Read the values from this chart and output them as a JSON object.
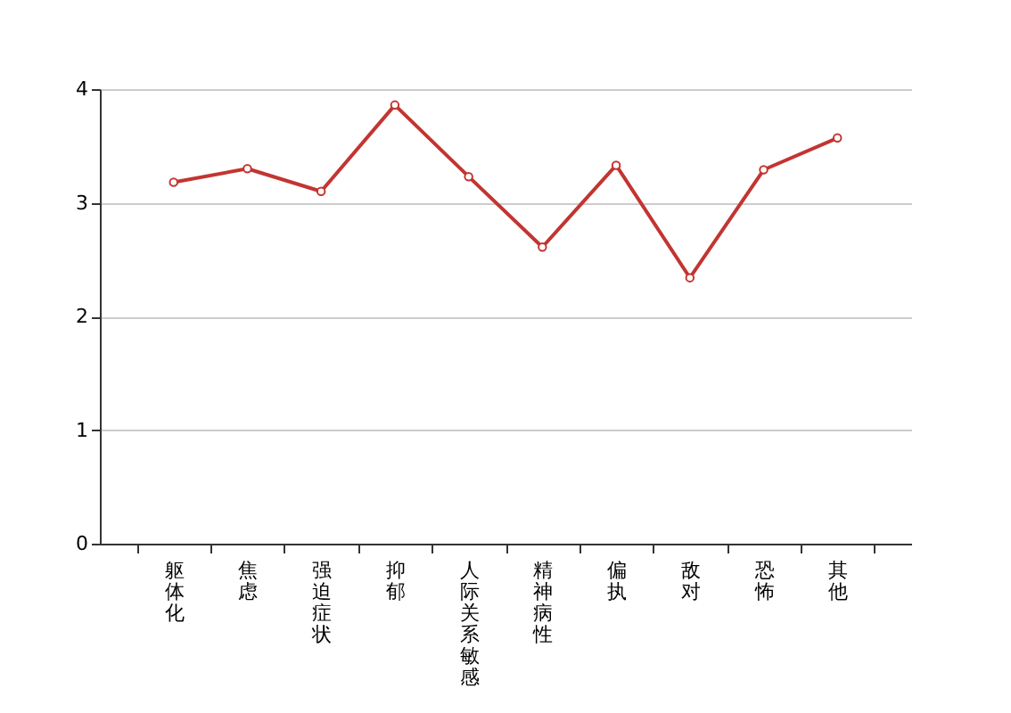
{
  "chart_data": {
    "type": "line",
    "categories": [
      "躯体化",
      "焦虑",
      "强迫症状",
      "抑郁",
      "人际关系敏感",
      "精神病性",
      "偏执",
      "敌对",
      "恐怖",
      "其他"
    ],
    "series": [
      {
        "color": "#c23531",
        "values": [
          3.18,
          3.3,
          3.1,
          3.86,
          3.23,
          2.61,
          3.33,
          2.34,
          3.29,
          3.57
        ]
      }
    ],
    "ylim": [
      0,
      4
    ],
    "yticks": [
      0,
      1,
      2,
      3,
      4
    ],
    "grid": "y",
    "marker": "circle",
    "line_style": "solid"
  }
}
